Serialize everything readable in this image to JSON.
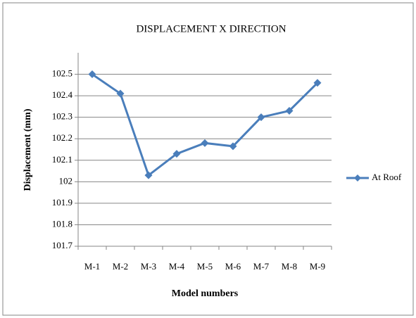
{
  "chart_data": {
    "type": "line",
    "title": "DISPLACEMENT X DIRECTION",
    "x_label": "Model numbers",
    "y_label": "Displacement (mm)",
    "categories": [
      "M-1",
      "M-2",
      "M-3",
      "M-4",
      "M-5",
      "M-6",
      "M-7",
      "M-8",
      "M-9"
    ],
    "series": [
      {
        "name": "At Roof",
        "color": "#4a7ebb",
        "values": [
          102.5,
          102.41,
          102.03,
          102.13,
          102.18,
          102.165,
          102.3,
          102.33,
          102.46
        ]
      }
    ],
    "ylim": [
      101.7,
      102.6
    ],
    "yticks": [
      101.7,
      101.8,
      101.9,
      102,
      102.1,
      102.2,
      102.3,
      102.4,
      102.5
    ],
    "grid": true,
    "legend": "right"
  }
}
